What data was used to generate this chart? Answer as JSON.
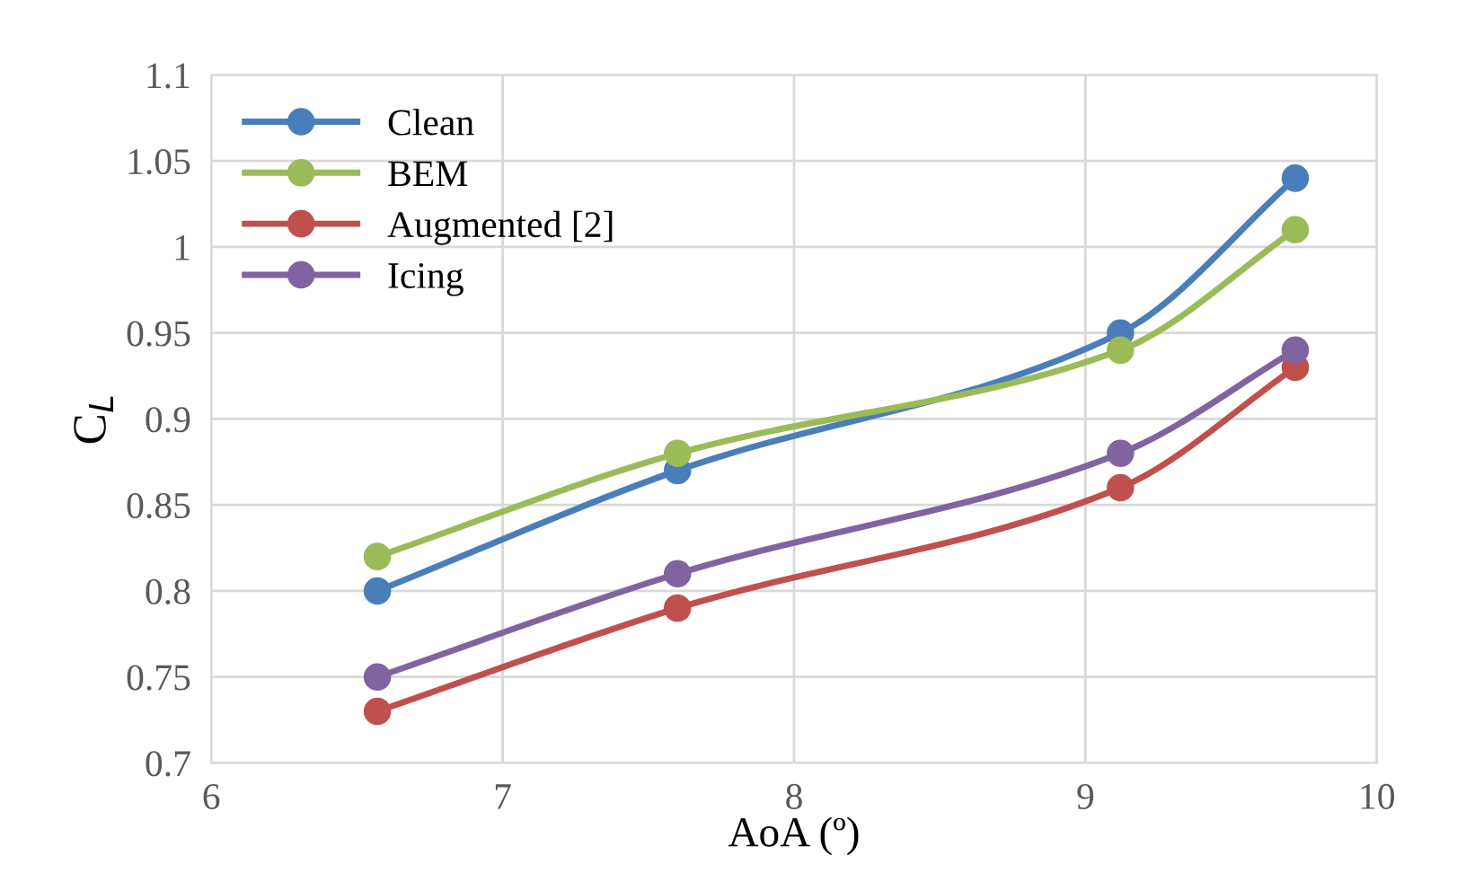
{
  "chart_data": {
    "type": "line",
    "xlabel": "AoA (º)",
    "ylabel": "C$_{L}$",
    "series": [
      {
        "name": "Clean",
        "color": "#4a7ebb",
        "x": [
          6.57,
          7.6,
          9.12,
          9.72
        ],
        "values": [
          0.8,
          0.87,
          0.95,
          1.04
        ]
      },
      {
        "name": "BEM",
        "color": "#9bbb59",
        "x": [
          6.57,
          7.6,
          9.12,
          9.72
        ],
        "values": [
          0.82,
          0.88,
          0.94,
          1.01
        ]
      },
      {
        "name": "Augmented [2]",
        "color": "#c0504d",
        "x": [
          6.57,
          7.6,
          9.12,
          9.72
        ],
        "values": [
          0.73,
          0.79,
          0.86,
          0.93
        ]
      },
      {
        "name": "Icing",
        "color": "#8064a2",
        "x": [
          6.57,
          7.6,
          9.12,
          9.72
        ],
        "values": [
          0.75,
          0.81,
          0.88,
          0.94
        ]
      }
    ],
    "xlim": [
      6,
      10
    ],
    "xticks": [
      6,
      7,
      8,
      9,
      10
    ],
    "ylim": [
      0.7,
      1.1
    ],
    "yticks": [
      0.7,
      0.75,
      0.8,
      0.85,
      0.9,
      0.95,
      {
        "value": 1,
        "label": "1"
      },
      1.05,
      1.1
    ],
    "grid": true,
    "legend": "top left",
    "marker": "circle",
    "line_style": "solid"
  }
}
